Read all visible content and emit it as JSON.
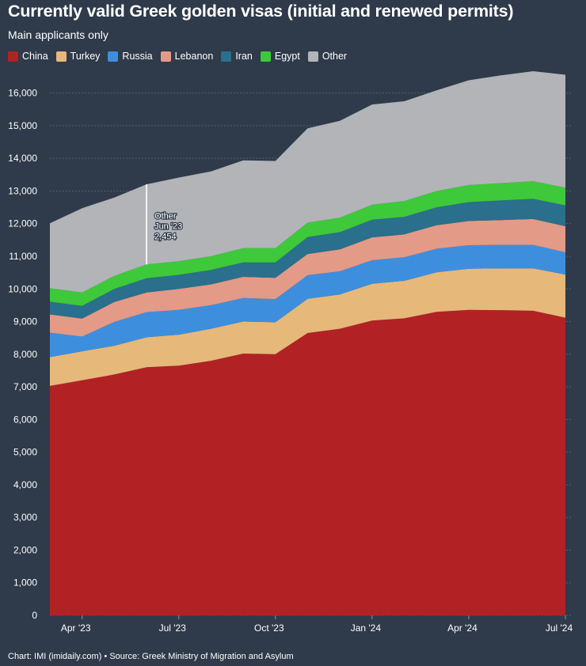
{
  "title": "Currently valid Greek golden visas (initial and renewed permits)",
  "subtitle": "Main applicants only",
  "footer": "Chart: IMI (imidaily.com) • Source: Greek Ministry of Migration and Asylum",
  "tooltip": {
    "series": "Other",
    "period": "Jun '23",
    "value": "2,454"
  },
  "chart_data": {
    "type": "area",
    "stacked": true,
    "x": [
      "Mar 2023",
      "Apr 2023",
      "May 2023",
      "Jun 2023",
      "Jul 2023",
      "Aug 2023",
      "Sep 2023",
      "Oct 2023",
      "Nov 2023",
      "Dec 2023",
      "Jan 2024",
      "Feb 2024",
      "Mar 2024",
      "Apr 2024",
      "May 2024",
      "Jun 2024",
      "Jul 2024"
    ],
    "x_tick_labels": [
      "Apr '23",
      "Jul '23",
      "Oct '23",
      "Jan '24",
      "Apr '24",
      "Jul '24"
    ],
    "x_tick_index": [
      1,
      4,
      7,
      10,
      13,
      16
    ],
    "ylim": [
      0,
      16500
    ],
    "y_ticks": [
      0,
      1000,
      2000,
      3000,
      4000,
      5000,
      6000,
      7000,
      8000,
      9000,
      10000,
      11000,
      12000,
      13000,
      14000,
      15000,
      16000
    ],
    "y_tick_labels": [
      "0",
      "1,000",
      "2,000",
      "3,000",
      "4,000",
      "5,000",
      "6,000",
      "7,000",
      "8,000",
      "9,000",
      "10,000",
      "11,000",
      "12,000",
      "13,000",
      "14,000",
      "15,000",
      "16,000"
    ],
    "grid": true,
    "legend_position": "top-left",
    "series": [
      {
        "name": "China",
        "color": "#b22224",
        "values": [
          7030,
          7200,
          7380,
          7600,
          7650,
          7800,
          8020,
          8000,
          8650,
          8780,
          9030,
          9100,
          9300,
          9360,
          9350,
          9330,
          9120
        ]
      },
      {
        "name": "Turkey",
        "color": "#e6b87a",
        "values": [
          880,
          890,
          880,
          920,
          950,
          980,
          980,
          980,
          1050,
          1050,
          1130,
          1150,
          1210,
          1260,
          1280,
          1300,
          1320
        ]
      },
      {
        "name": "Russia",
        "color": "#3d8fde",
        "values": [
          750,
          450,
          730,
          770,
          760,
          720,
          720,
          710,
          720,
          710,
          720,
          720,
          720,
          720,
          720,
          720,
          680
        ]
      },
      {
        "name": "Lebanon",
        "color": "#e39a86",
        "values": [
          560,
          550,
          610,
          600,
          640,
          640,
          650,
          650,
          650,
          670,
          700,
          700,
          720,
          740,
          760,
          790,
          800
        ]
      },
      {
        "name": "Iran",
        "color": "#2a6f8c",
        "values": [
          390,
          390,
          400,
          440,
          430,
          440,
          440,
          470,
          520,
          530,
          540,
          540,
          550,
          580,
          600,
          620,
          640
        ]
      },
      {
        "name": "Egypt",
        "color": "#3ec93a",
        "values": [
          410,
          410,
          400,
          420,
          420,
          420,
          440,
          440,
          440,
          440,
          460,
          480,
          500,
          520,
          530,
          540,
          540
        ]
      },
      {
        "name": "Other",
        "color": "#b2b4b8",
        "values": [
          1990,
          2580,
          2400,
          2454,
          2560,
          2600,
          2690,
          2670,
          2890,
          2970,
          3070,
          3060,
          3080,
          3210,
          3300,
          3370,
          3460
        ]
      }
    ]
  }
}
